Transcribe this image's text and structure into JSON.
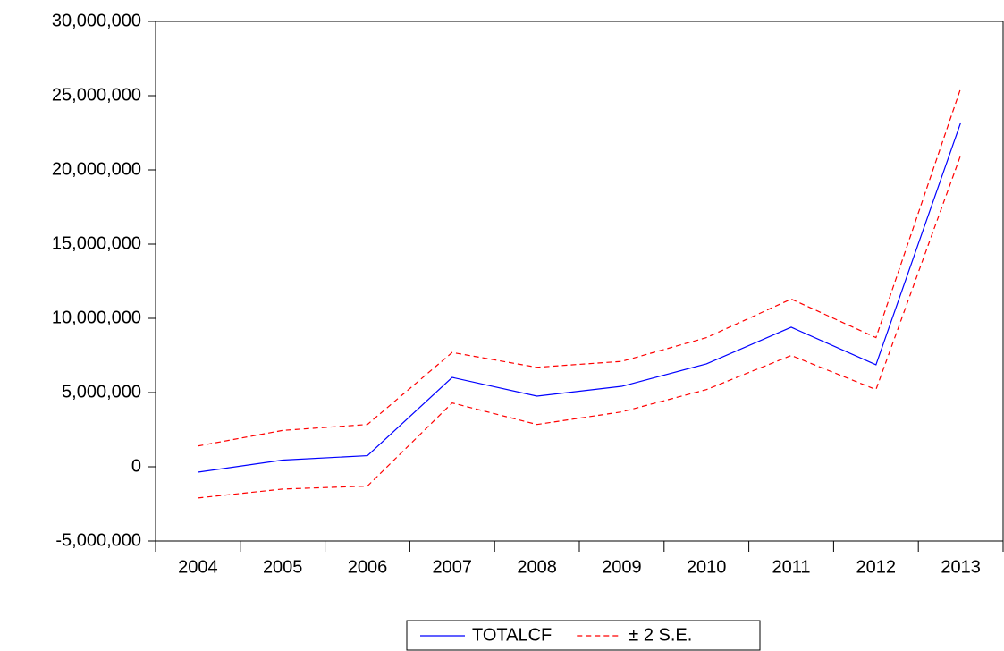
{
  "chart_data": {
    "type": "line",
    "categories": [
      "2004",
      "2005",
      "2006",
      "2007",
      "2008",
      "2009",
      "2010",
      "2011",
      "2012",
      "2013"
    ],
    "series": [
      {
        "name": "TOTALCF",
        "color": "#0000ff",
        "dashed": false,
        "values": [
          -360000,
          450000,
          750000,
          6020000,
          4760000,
          5420000,
          6930000,
          9400000,
          6870000,
          23190000
        ]
      },
      {
        "name": "± 2 S.E.",
        "color": "#ff0000",
        "dashed": true,
        "values": [
          1400000,
          2450000,
          2850000,
          7700000,
          6700000,
          7100000,
          8700000,
          11300000,
          8700000,
          25500000
        ],
        "lower": [
          -2100000,
          -1500000,
          -1300000,
          4300000,
          2850000,
          3700000,
          5200000,
          7500000,
          5200000,
          21000000
        ]
      }
    ],
    "ylim": [
      -5000000,
      30000000
    ],
    "yticks": [
      {
        "value": -5000000,
        "label": "-5,000,000"
      },
      0,
      {
        "value": 5000000,
        "label": "5,000,000"
      },
      {
        "value": 10000000,
        "label": "10,000,000"
      },
      {
        "value": 15000000,
        "label": "15,000,000"
      },
      {
        "value": 20000000,
        "label": "20,000,000"
      },
      {
        "value": 25000000,
        "label": "25,000,000"
      },
      {
        "value": 30000000,
        "label": "30,000,000"
      }
    ],
    "grid": false,
    "legend": "bottom"
  }
}
